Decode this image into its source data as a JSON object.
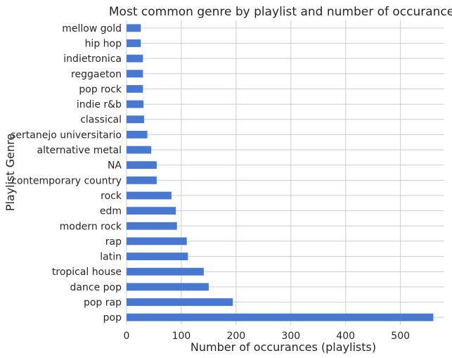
{
  "chart_data": {
    "type": "bar",
    "orientation": "horizontal",
    "title": "Most common genre by playlist and number of occurances",
    "xlabel": "Number of occurances (playlists)",
    "ylabel": "Playlist Genre",
    "categories": [
      "pop",
      "pop rap",
      "dance pop",
      "tropical house",
      "latin",
      "rap",
      "modern rock",
      "edm",
      "rock",
      "contemporary country",
      "NA",
      "alternative metal",
      "sertanejo universitario",
      "classical",
      "indie r&b",
      "pop rock",
      "reggaeton",
      "indietronica",
      "hip hop",
      "mellow gold"
    ],
    "values": [
      560,
      194,
      150,
      141,
      112,
      110,
      92,
      90,
      82,
      55,
      55,
      45,
      38,
      32,
      31,
      30,
      30,
      30,
      26,
      26
    ],
    "xlim": [
      0,
      580
    ],
    "xticks": [
      0,
      100,
      200,
      300,
      400,
      500
    ],
    "grid": true,
    "bar_color": "#4878cf",
    "grid_color": "#cccccc"
  }
}
